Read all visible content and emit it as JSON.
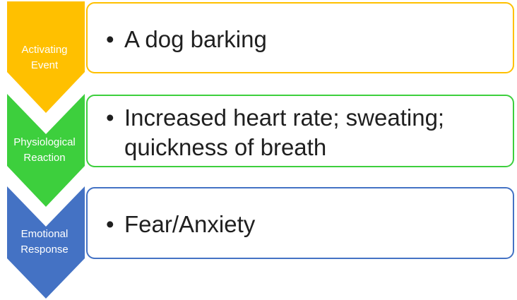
{
  "steps": [
    {
      "label_line1": "Activating",
      "label_line2": "Event",
      "bullet": "•",
      "text": "A dog barking",
      "color": "#FFC000"
    },
    {
      "label_line1": "Physiological",
      "label_line2": "Reaction",
      "bullet": "•",
      "text": "Increased heart rate; sweating; quickness of breath",
      "color": "#3DCF3D"
    },
    {
      "label_line1": "Emotional",
      "label_line2": "Response",
      "bullet": "•",
      "text": "Fear/Anxiety",
      "color": "#4472C4"
    }
  ]
}
